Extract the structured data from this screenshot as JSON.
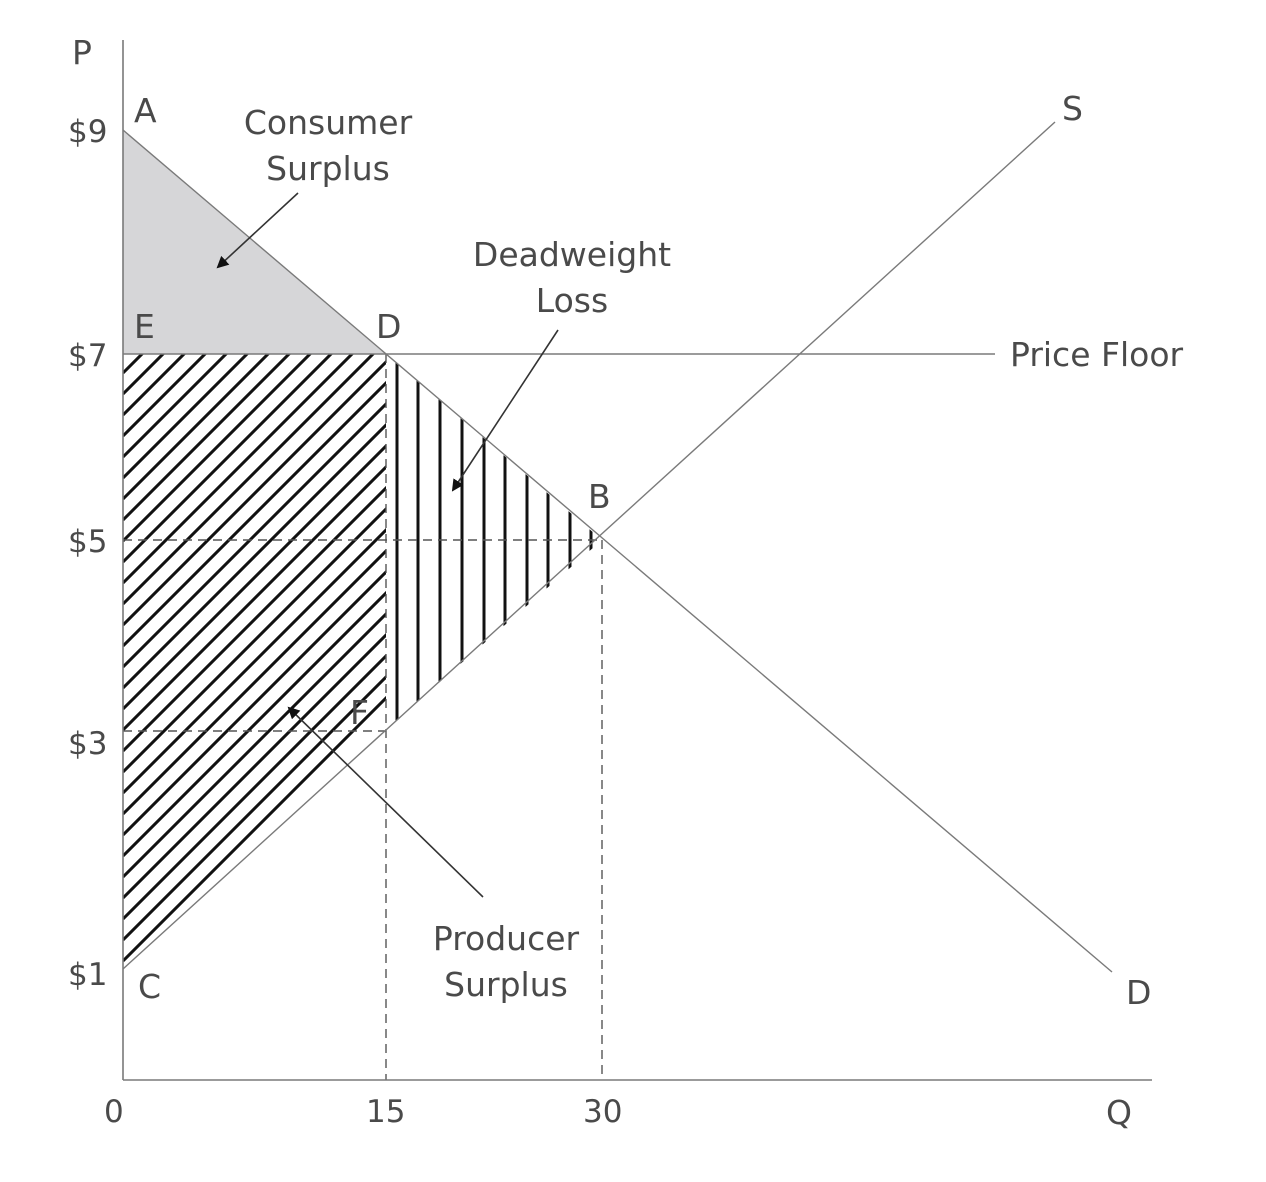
{
  "axes": {
    "y_label": "P",
    "x_label": "Q",
    "origin": "0"
  },
  "price_ticks": [
    "$9",
    "$7",
    "$5",
    "$3",
    "$1"
  ],
  "quantity_ticks": [
    "15",
    "30"
  ],
  "points": {
    "A": "A",
    "E": "E",
    "D_top": "D",
    "B": "B",
    "F": "F",
    "C": "C"
  },
  "curves": {
    "supply": "S",
    "demand": "D",
    "price_floor": "Price Floor"
  },
  "annotations": {
    "consumer_surplus": [
      "Consumer",
      "Surplus"
    ],
    "deadweight_loss": [
      "Deadweight",
      "Loss"
    ],
    "producer_surplus": [
      "Producer",
      "Surplus"
    ]
  },
  "colors": {
    "consumer_surplus_fill": "#d6d6d8",
    "hatch": "#111111",
    "lines": "#7a7a7a"
  }
}
